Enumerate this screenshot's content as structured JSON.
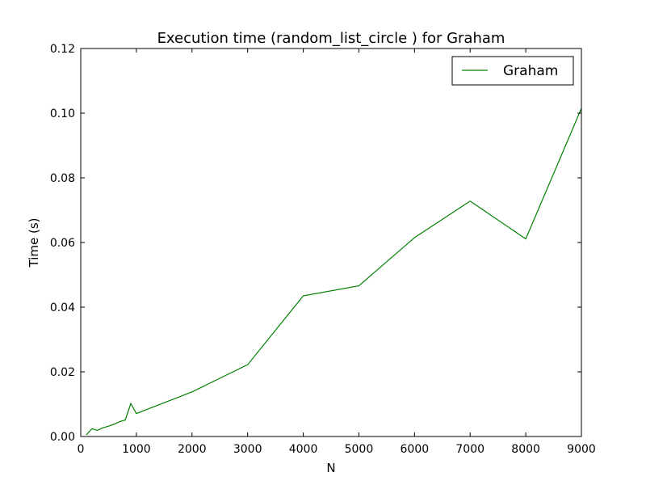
{
  "chart_data": {
    "type": "line",
    "title": "Execution time (random_list_circle ) for Graham",
    "xlabel": "N",
    "ylabel": "Time (s)",
    "xlim": [
      0,
      9000
    ],
    "ylim": [
      0,
      0.12
    ],
    "x_ticks": [
      "0",
      "1000",
      "2000",
      "3000",
      "4000",
      "5000",
      "6000",
      "7000",
      "8000",
      "9000"
    ],
    "y_ticks": [
      "0.00",
      "0.02",
      "0.04",
      "0.06",
      "0.08",
      "0.10",
      "0.12"
    ],
    "grid": false,
    "legend_position": "top-right",
    "series": [
      {
        "name": "Graham",
        "color": "#008000",
        "x": [
          100,
          200,
          300,
          400,
          500,
          600,
          700,
          800,
          900,
          1000,
          2000,
          3000,
          4000,
          5000,
          6000,
          7000,
          8000,
          9000
        ],
        "y": [
          0.0005,
          0.0024,
          0.0019,
          0.0027,
          0.0032,
          0.0038,
          0.0046,
          0.0051,
          0.0102,
          0.0071,
          0.0138,
          0.0222,
          0.0435,
          0.0466,
          0.0615,
          0.0728,
          0.0611,
          0.1015
        ]
      }
    ]
  }
}
